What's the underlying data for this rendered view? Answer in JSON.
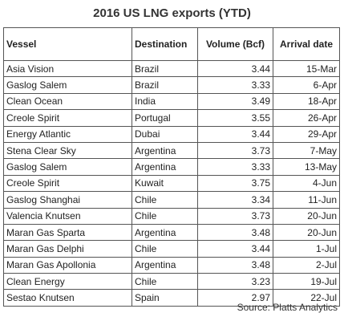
{
  "chart_data": {
    "type": "table",
    "title": "2016 US LNG exports (YTD)",
    "columns": [
      "Vessel",
      "Destination",
      "Volume (Bcf)",
      "Arrival date"
    ],
    "rows": [
      {
        "vessel": "Asia Vision",
        "destination": "Brazil",
        "volume": "3.44",
        "arrival": "15-Mar"
      },
      {
        "vessel": "Gaslog Salem",
        "destination": "Brazil",
        "volume": "3.33",
        "arrival": "6-Apr"
      },
      {
        "vessel": "Clean Ocean",
        "destination": "India",
        "volume": "3.49",
        "arrival": "18-Apr"
      },
      {
        "vessel": "Creole Spirit",
        "destination": "Portugal",
        "volume": "3.55",
        "arrival": "26-Apr"
      },
      {
        "vessel": "Energy Atlantic",
        "destination": "Dubai",
        "volume": "3.44",
        "arrival": "29-Apr"
      },
      {
        "vessel": "Stena Clear Sky",
        "destination": "Argentina",
        "volume": "3.73",
        "arrival": "7-May"
      },
      {
        "vessel": "Gaslog Salem",
        "destination": "Argentina",
        "volume": "3.33",
        "arrival": "13-May"
      },
      {
        "vessel": "Creole Spirit",
        "destination": "Kuwait",
        "volume": "3.75",
        "arrival": "4-Jun"
      },
      {
        "vessel": "Gaslog Shanghai",
        "destination": "Chile",
        "volume": "3.34",
        "arrival": "11-Jun"
      },
      {
        "vessel": "Valencia Knutsen",
        "destination": "Chile",
        "volume": "3.73",
        "arrival": "20-Jun"
      },
      {
        "vessel": "Maran Gas Sparta",
        "destination": "Argentina",
        "volume": "3.48",
        "arrival": "20-Jun"
      },
      {
        "vessel": "Maran Gas Delphi",
        "destination": "Chile",
        "volume": "3.44",
        "arrival": "1-Jul"
      },
      {
        "vessel": "Maran Gas Apollonia",
        "destination": "Argentina",
        "volume": "3.48",
        "arrival": "2-Jul"
      },
      {
        "vessel": "Clean Energy",
        "destination": "Chile",
        "volume": "3.23",
        "arrival": "19-Jul"
      },
      {
        "vessel": "Sestao Knutsen",
        "destination": "Spain",
        "volume": "2.97",
        "arrival": "22-Jul"
      }
    ],
    "source": "Source: Platts Analytics"
  }
}
